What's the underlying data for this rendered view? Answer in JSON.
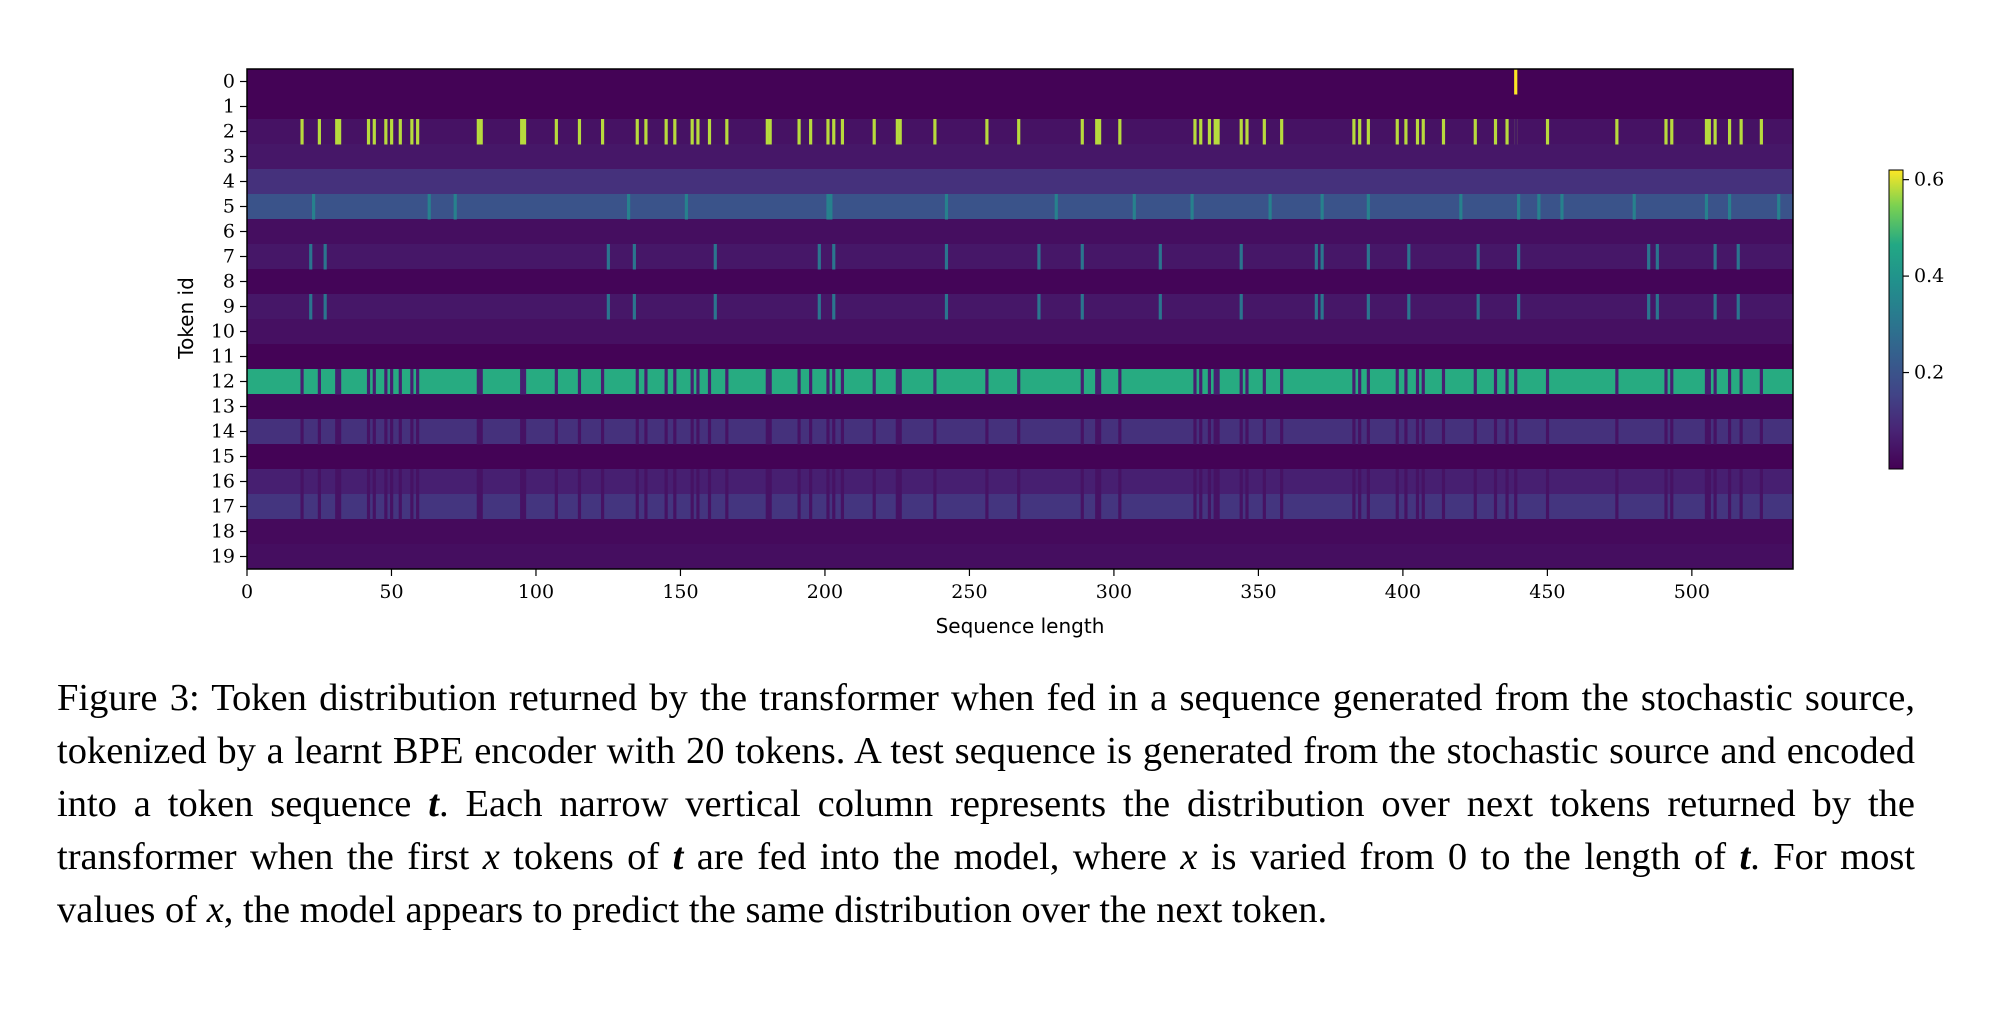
{
  "chart_data": {
    "type": "heatmap",
    "title": "",
    "xlabel": "Sequence length",
    "ylabel": "Token id",
    "x_range": [
      0,
      535
    ],
    "xticks": [
      0,
      50,
      100,
      150,
      200,
      250,
      300,
      350,
      400,
      450,
      500
    ],
    "y_categories": [
      0,
      1,
      2,
      3,
      4,
      5,
      6,
      7,
      8,
      9,
      10,
      11,
      12,
      13,
      14,
      15,
      16,
      17,
      18,
      19
    ],
    "colormap": "viridis",
    "colorbar": {
      "range": [
        0.0,
        0.62
      ],
      "ticks": [
        0.2,
        0.4,
        0.6
      ]
    },
    "row_base_values": {
      "0": 0.005,
      "1": 0.005,
      "2": 0.04,
      "3": 0.05,
      "4": 0.11,
      "5": 0.2,
      "6": 0.03,
      "7": 0.05,
      "8": 0.01,
      "9": 0.05,
      "10": 0.035,
      "11": 0.005,
      "12": 0.47,
      "13": 0.01,
      "14": 0.11,
      "15": 0.005,
      "16": 0.07,
      "17": 0.12,
      "18": 0.02,
      "19": 0.03
    },
    "token2_spike_columns": [
      19,
      25,
      31,
      32,
      42,
      44,
      48,
      50,
      53,
      57,
      59,
      80,
      81,
      95,
      96,
      107,
      115,
      123,
      135,
      138,
      145,
      148,
      154,
      156,
      160,
      166,
      180,
      181,
      191,
      195,
      201,
      203,
      206,
      217,
      225,
      226,
      238,
      256,
      267,
      289,
      294,
      295,
      302,
      328,
      330,
      333,
      335,
      336,
      344,
      346,
      352,
      358,
      383,
      385,
      388,
      398,
      401,
      405,
      407,
      414,
      425,
      432,
      436,
      439,
      450,
      474,
      491,
      493,
      505,
      506,
      508,
      513,
      517,
      524
    ],
    "token0_spike_column": 439,
    "token12_dip_columns": [
      19,
      25,
      31,
      32,
      42,
      44,
      48,
      50,
      53,
      57,
      59,
      80,
      81,
      95,
      96,
      107,
      115,
      123,
      135,
      138,
      145,
      148,
      154,
      156,
      160,
      166,
      180,
      181,
      191,
      195,
      201,
      203,
      206,
      217,
      225,
      226,
      238,
      256,
      267,
      289,
      294,
      295,
      302,
      328,
      330,
      333,
      335,
      336,
      344,
      346,
      352,
      358,
      383,
      385,
      388,
      398,
      401,
      405,
      407,
      414,
      425,
      432,
      436,
      439,
      450,
      474,
      491,
      493,
      505,
      506,
      508,
      513,
      517,
      524
    ],
    "token5_bright_columns": [
      23,
      63,
      72,
      132,
      152,
      201,
      202,
      242,
      280,
      307,
      327,
      354,
      372,
      388,
      420,
      440,
      447,
      455,
      480,
      505,
      513,
      530
    ],
    "token7_9_bright_columns": [
      22,
      27,
      125,
      134,
      162,
      198,
      203,
      242,
      274,
      289,
      316,
      344,
      370,
      372,
      388,
      402,
      426,
      440,
      485,
      488,
      508,
      516
    ]
  },
  "caption": {
    "figure_label": "Figure 3:",
    "text_1": " Token distribution returned by the transformer when fed in a sequence generated from the stochastic source, tokenized by a learnt BPE encoder with 20 tokens. A test sequence is generated from the stochastic source and encoded into a token sequence ",
    "vec_t_1": "t",
    "text_2": ". Each narrow vertical column represents the distribution over next tokens returned by the transformer when the first ",
    "var_x_1": "x",
    "text_3": " tokens of ",
    "vec_t_2": "t",
    "text_4": " are fed into the model, where ",
    "var_x_2": "x",
    "text_5": " is varied from 0 to the length of ",
    "vec_t_3": "t",
    "text_6": ". For most values of ",
    "var_x_3": "x",
    "text_7": ", the model appears to predict the same distribution over the next token."
  }
}
